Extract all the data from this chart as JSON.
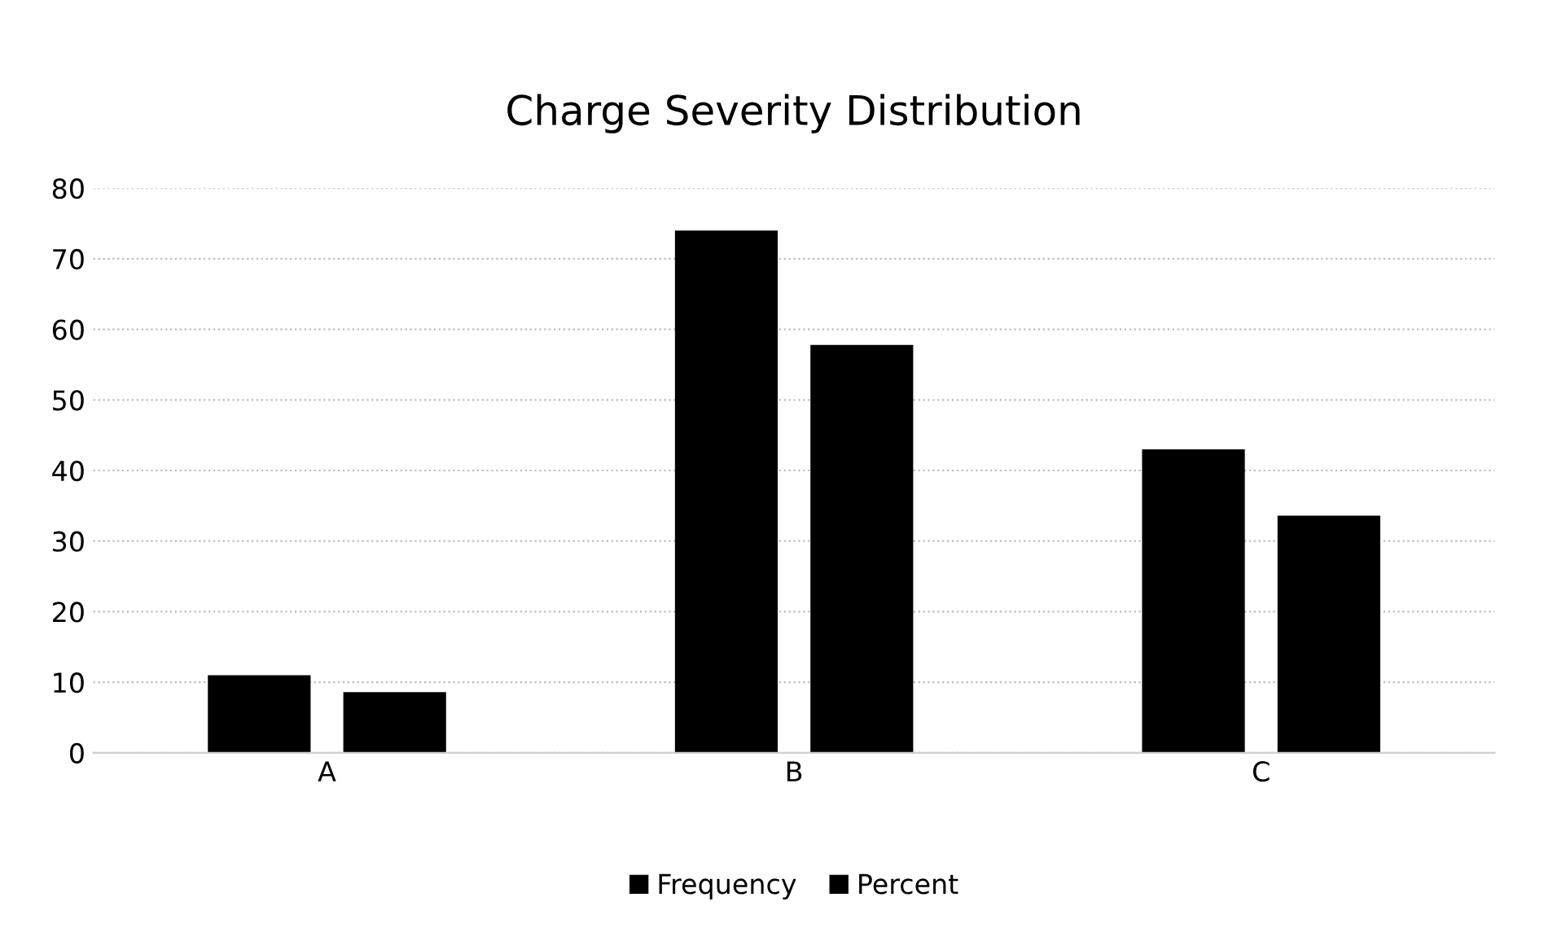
{
  "chart_data": {
    "type": "bar",
    "title": "Charge Severity Distribution",
    "categories": [
      "A",
      "B",
      "C"
    ],
    "series": [
      {
        "name": "Frequency",
        "color": "#000000",
        "values": [
          11,
          74,
          43
        ]
      },
      {
        "name": "Percent",
        "color": "#000000",
        "values": [
          8.6,
          57.8,
          33.6
        ]
      }
    ],
    "ylim": [
      0,
      80
    ],
    "yticks": [
      0,
      10,
      20,
      30,
      40,
      50,
      60,
      70,
      80
    ],
    "grid": "y",
    "legend": "bottom"
  }
}
